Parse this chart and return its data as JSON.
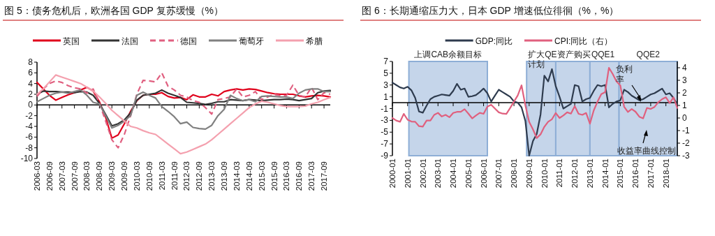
{
  "chart_data": [
    {
      "type": "line",
      "title": "图 5：债务危机后，欧洲各国 GDP 复苏缓慢（%）",
      "legend": "top",
      "x": [
        "2006-03",
        "2006-06",
        "2006-09",
        "2006-12",
        "2007-03",
        "2007-06",
        "2007-09",
        "2007-12",
        "2008-03",
        "2008-06",
        "2008-09",
        "2008-12",
        "2009-03",
        "2009-06",
        "2009-09",
        "2009-12",
        "2010-03",
        "2010-06",
        "2010-09",
        "2010-12",
        "2011-03",
        "2011-06",
        "2011-09",
        "2011-12",
        "2012-03",
        "2012-06",
        "2012-09",
        "2012-12",
        "2013-03",
        "2013-06",
        "2013-09",
        "2013-12",
        "2014-03",
        "2014-06",
        "2014-09",
        "2014-12",
        "2015-03",
        "2015-06",
        "2015-09",
        "2015-12",
        "2016-03",
        "2016-06",
        "2016-09",
        "2016-12",
        "2017-03",
        "2017-06",
        "2017-09",
        "2017-12"
      ],
      "xlim": [
        "2006-03",
        "2017-12"
      ],
      "xticks": [
        "2006-03",
        "2006-09",
        "2007-03",
        "2007-09",
        "2008-03",
        "2008-09",
        "2009-03",
        "2009-09",
        "2010-03",
        "2010-09",
        "2011-03",
        "2011-09",
        "2012-03",
        "2012-09",
        "2013-03",
        "2013-09",
        "2014-03",
        "2014-09",
        "2015-03",
        "2015-09",
        "2016-03",
        "2016-09",
        "2017-03",
        "2017-09"
      ],
      "ylim": [
        -10,
        8
      ],
      "yticks": [
        -10,
        -8,
        -6,
        -4,
        -2,
        0,
        2,
        4,
        6,
        8
      ],
      "series": [
        {
          "name": "英国",
          "color": "#e0001b",
          "values": [
            4.2,
            3.0,
            1.8,
            0.9,
            1.4,
            1.9,
            2.3,
            2.8,
            3.3,
            2.6,
            0.6,
            -2.3,
            -6.2,
            -5.6,
            -3.5,
            -1.2,
            0.8,
            1.8,
            2.0,
            2.0,
            2.3,
            1.6,
            1.3,
            1.4,
            1.0,
            1.9,
            1.5,
            1.5,
            2.0,
            1.7,
            2.5,
            2.8,
            3.0,
            2.8,
            3.0,
            2.9,
            2.6,
            2.3,
            2.1,
            2.0,
            2.0,
            2.0,
            1.7,
            1.5,
            1.7,
            1.8,
            1.7,
            1.5
          ]
        },
        {
          "name": "法国",
          "color": "#333333",
          "values": [
            2.0,
            2.6,
            2.5,
            2.5,
            2.4,
            2.4,
            2.3,
            2.5,
            2.4,
            1.8,
            0.3,
            -1.8,
            -3.9,
            -3.5,
            -2.8,
            -1.5,
            0.9,
            1.8,
            2.0,
            2.2,
            2.8,
            2.2,
            1.8,
            1.4,
            0.5,
            0.4,
            0.3,
            0.1,
            0.3,
            0.6,
            0.6,
            1.0,
            0.9,
            0.8,
            1.0,
            0.9,
            0.8,
            0.9,
            1.0,
            1.0,
            1.1,
            1.0,
            0.8,
            1.0,
            1.2,
            2.3,
            2.6,
            2.7
          ]
        },
        {
          "name": "德国",
          "color": "#e06080",
          "line_style": "dashed",
          "values": [
            1.6,
            3.0,
            4.0,
            4.5,
            4.2,
            3.6,
            3.2,
            3.0,
            2.2,
            3.0,
            0.3,
            -3.0,
            -6.5,
            -8.0,
            -5.5,
            -2.0,
            2.0,
            4.6,
            4.5,
            4.3,
            6.0,
            3.5,
            2.8,
            1.8,
            1.5,
            0.8,
            0.5,
            -0.5,
            -1.7,
            1.0,
            1.2,
            1.5,
            3.0,
            1.5,
            1.8,
            2.5,
            1.0,
            1.5,
            2.0,
            1.7,
            1.8,
            3.7,
            1.8,
            1.5,
            3.3,
            1.0,
            2.3,
            2.0
          ]
        },
        {
          "name": "葡萄牙",
          "color": "#808080",
          "values": [
            0.6,
            1.2,
            1.8,
            2.2,
            2.4,
            2.2,
            2.5,
            2.8,
            1.8,
            0.5,
            0.2,
            -2.0,
            -4.3,
            -3.8,
            -3.0,
            -2.0,
            1.8,
            2.4,
            1.8,
            1.3,
            -0.3,
            -1.2,
            -2.2,
            -3.5,
            -3.2,
            -4.2,
            -4.4,
            -4.5,
            -3.8,
            -2.0,
            -0.8,
            1.8,
            1.2,
            0.8,
            1.0,
            0.6,
            1.6,
            1.7,
            1.6,
            1.5,
            1.5,
            1.2,
            2.2,
            2.8,
            3.0,
            3.0,
            2.5,
            2.5
          ]
        },
        {
          "name": "希腊",
          "color": "#f4a0ae",
          "values": [
            2.0,
            3.0,
            4.3,
            5.6,
            5.2,
            4.8,
            4.4,
            4.0,
            3.3,
            2.6,
            1.5,
            0.3,
            -1.0,
            -2.0,
            -3.0,
            -4.0,
            -4.3,
            -4.8,
            -5.2,
            -5.5,
            -6.4,
            -7.3,
            -8.2,
            -9.1,
            -8.8,
            -8.3,
            -7.8,
            -7.3,
            -6.5,
            -5.5,
            -4.5,
            -3.5,
            -2.5,
            -1.5,
            -0.5,
            0.2,
            0.7,
            0.5,
            0.2,
            -0.1,
            -0.3,
            -0.3,
            -0.3,
            -0.2,
            0.2,
            0.5,
            1.0,
            1.4
          ]
        }
      ]
    },
    {
      "type": "line",
      "title": "图 6：长期通缩压力大，日本 GDP 增速低位徘徊（%，%）",
      "legend": "top",
      "x": [
        "2000-01",
        "2000-04",
        "2000-07",
        "2000-10",
        "2001-01",
        "2001-04",
        "2001-07",
        "2001-10",
        "2002-01",
        "2002-04",
        "2002-07",
        "2002-10",
        "2003-01",
        "2003-04",
        "2003-07",
        "2003-10",
        "2004-01",
        "2004-04",
        "2004-07",
        "2004-10",
        "2005-01",
        "2005-04",
        "2005-07",
        "2005-10",
        "2006-01",
        "2006-04",
        "2006-07",
        "2006-10",
        "2007-01",
        "2007-04",
        "2007-07",
        "2007-10",
        "2008-01",
        "2008-04",
        "2008-07",
        "2008-10",
        "2009-01",
        "2009-04",
        "2009-07",
        "2009-10",
        "2010-01",
        "2010-04",
        "2010-07",
        "2010-10",
        "2011-01",
        "2011-04",
        "2011-07",
        "2011-10",
        "2012-01",
        "2012-04",
        "2012-07",
        "2012-10",
        "2013-01",
        "2013-04",
        "2013-07",
        "2013-10",
        "2014-01",
        "2014-04",
        "2014-07",
        "2014-10",
        "2015-01",
        "2015-04",
        "2015-07",
        "2015-10",
        "2016-01",
        "2016-04",
        "2016-07",
        "2016-10",
        "2017-01",
        "2017-04",
        "2017-07",
        "2017-10",
        "2018-01",
        "2018-04",
        "2018-07",
        "2018-10"
      ],
      "xlim": [
        "2000-01",
        "2018-10"
      ],
      "xticks": [
        "2000-01",
        "2001-01",
        "2002-01",
        "2003-01",
        "2004-01",
        "2005-01",
        "2006-01",
        "2007-01",
        "2008-01",
        "2009-01",
        "2010-01",
        "2011-01",
        "2012-01",
        "2013-01",
        "2014-01",
        "2015-01",
        "2016-01",
        "2017-01",
        "2018-01"
      ],
      "ylim": [
        -9,
        7
      ],
      "yticks": [
        -9,
        -7,
        -5,
        -3,
        -1,
        1,
        3,
        5,
        7
      ],
      "y2lim": [
        -3,
        4.5
      ],
      "y2ticks": [
        -3,
        -2,
        -1,
        0,
        1,
        2,
        3,
        4
      ],
      "bands": [
        {
          "axis": "x",
          "from": "2001-02",
          "to": "2006-04",
          "label": "上调CAB余额目标",
          "color": "#c5d5ea"
        },
        {
          "axis": "x",
          "from": "2008-11",
          "to": "2010-10",
          "label": "扩大QE资产购买计划",
          "color": "#c5d5ea"
        },
        {
          "axis": "x",
          "from": "2010-10",
          "to": "2013-01",
          "label": null,
          "color": "#c5d5ea"
        },
        {
          "axis": "x",
          "from": "2013-01",
          "to": "2014-12",
          "label": "QQE1",
          "color": "#c5d5ea"
        },
        {
          "axis": "x",
          "from": "2014-12",
          "to": "2018-10",
          "label": "QQE2",
          "color": "#c5d5ea"
        }
      ],
      "annotations": [
        "负利率",
        "收益率曲线控制"
      ],
      "series": [
        {
          "name": "GDP:同比",
          "color": "#2e3b4e",
          "values": [
            3.4,
            3.0,
            2.6,
            2.4,
            2.7,
            2.1,
            0.8,
            -1.5,
            -1.7,
            -0.5,
            0.6,
            1.0,
            1.2,
            1.4,
            1.3,
            1.2,
            2.0,
            3.2,
            2.2,
            2.4,
            1.0,
            1.1,
            1.3,
            1.8,
            2.4,
            1.6,
            0.2,
            1.2,
            2.2,
            1.8,
            1.4,
            1.0,
            0.2,
            0.0,
            -0.8,
            -3.1,
            -9.0,
            -6.5,
            -5.3,
            -2.0,
            4.6,
            3.6,
            5.7,
            2.8,
            1.0,
            -1.0,
            -0.6,
            -0.2,
            3.0,
            2.8,
            0.2,
            0.6,
            0.8,
            2.0,
            3.0,
            2.8,
            3.0,
            -0.8,
            -0.2,
            0.2,
            0.4,
            2.2,
            1.8,
            1.2,
            0.8,
            0.4,
            0.6,
            1.0,
            1.4,
            1.6,
            2.0,
            2.4,
            1.4,
            1.6,
            0.8,
            -0.3
          ]
        },
        {
          "name": "CPI:同比（右）",
          "color": "#e0607e",
          "axis": "y2",
          "values": [
            0.0,
            -0.2,
            -0.3,
            0.33,
            -0.14,
            -0.28,
            -0.3,
            -0.65,
            -0.69,
            -0.2,
            -0.2,
            0.25,
            0.41,
            0.12,
            0.25,
            0.06,
            0.4,
            0.49,
            0.49,
            0.7,
            0.35,
            -0.03,
            0.2,
            0.41,
            0.33,
            0.9,
            1.06,
            0.75,
            0.45,
            0.35,
            0.33,
            0.8,
            1.3,
            1.8,
            2.6,
            1.0,
            -0.3,
            -0.9,
            -1.6,
            -1.3,
            -0.7,
            -0.3,
            -0.1,
            0.4,
            0.0,
            0.2,
            0.45,
            0.35,
            0.95,
            0.33,
            0.25,
            0.4,
            -0.45,
            0.6,
            1.3,
            1.9,
            2.05,
            4.0,
            3.5,
            2.9,
            2.6,
            0.9,
            0.48,
            0.72,
            0.5,
            0.1,
            -0.03,
            0.8,
            0.72,
            0.88,
            1.26,
            1.5,
            1.65,
            1.19,
            1.65,
            0.8
          ]
        }
      ]
    }
  ]
}
